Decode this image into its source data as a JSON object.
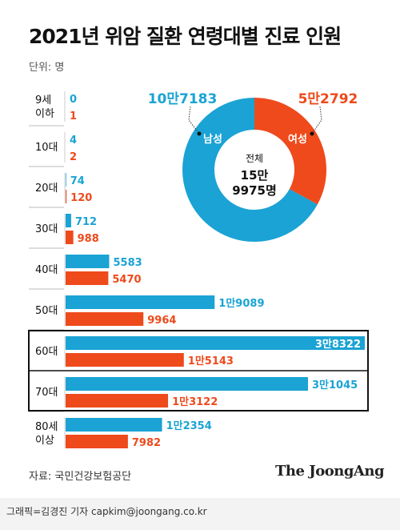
{
  "title": "2021년 위암 질환 연령대별 진료 인원",
  "unit": "단위: 명",
  "source": "자료: 국민건강보험공단",
  "brand": "The JoongAng",
  "credit": "그래픽=김경진 기자 capkim@joongang.co.kr",
  "colors": {
    "male": "#1aa3d4",
    "female": "#ee4a1c",
    "highlight_box": "#111111"
  },
  "chart_data": [
    {
      "type": "bar",
      "orientation": "horizontal",
      "categories": [
        "9세\n이하",
        "10대",
        "20대",
        "30대",
        "40대",
        "50대",
        "60대",
        "70대",
        "80세\n이상"
      ],
      "category_lines": [
        [
          "9세",
          "이하"
        ],
        [
          "10대"
        ],
        [
          "20대"
        ],
        [
          "30대"
        ],
        [
          "40대"
        ],
        [
          "50대"
        ],
        [
          "60대"
        ],
        [
          "70대"
        ],
        [
          "80세",
          "이상"
        ]
      ],
      "series": [
        {
          "values": [
            0,
            4,
            74,
            712,
            5583,
            19089,
            38322,
            31045,
            12354
          ],
          "labels": [
            "0",
            "4",
            "74",
            "712",
            "5583",
            "1만9089",
            "3만8322",
            "3만1045",
            "1만2354"
          ]
        },
        {
          "values": [
            1,
            2,
            120,
            988,
            5470,
            9964,
            15143,
            13122,
            7982
          ],
          "labels": [
            "1",
            "2",
            "120",
            "988",
            "5470",
            "9964",
            "1만5143",
            "1만3122",
            "7982"
          ]
        }
      ],
      "highlighted": [
        "60대",
        "70대"
      ],
      "xlim": [
        0,
        38322
      ]
    },
    {
      "type": "pie",
      "style": "donut",
      "labels": [
        "남성",
        "여성"
      ],
      "values": [
        107183,
        52792
      ],
      "value_labels": [
        "10만7183",
        "5만2792"
      ],
      "center_label": "전체",
      "center_value_lines": [
        "15만",
        "9975명"
      ]
    }
  ]
}
